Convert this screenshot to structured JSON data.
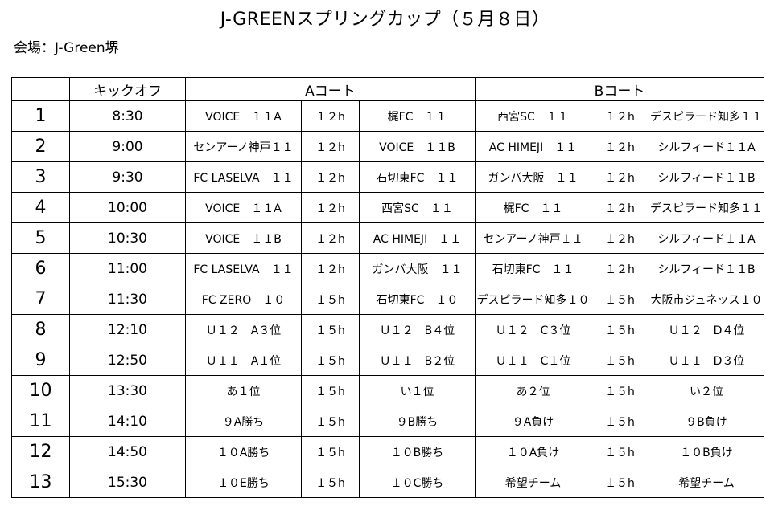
{
  "title": "J-GREENスプリングカップ（５月８日）",
  "venue": "会場：J-Green堺",
  "header": {
    "no": "",
    "kickoff": "キックオフ",
    "court_a": "Aコート",
    "court_b": "Bコート"
  },
  "rows": [
    {
      "no": "1",
      "time": "8:30",
      "a_team1": "VOICE　１１A",
      "a_ref": "１２h",
      "a_team2": "梶FC　１１",
      "b_team1": "西宮SC　１１",
      "b_ref": "１２h",
      "b_team2": "デスピラード知多１１"
    },
    {
      "no": "2",
      "time": "9:00",
      "a_team1": "センアーノ神戸１１",
      "a_ref": "１２h",
      "a_team2": "VOICE　１１B",
      "b_team1": "AC HIMEJI　１１",
      "b_ref": "１２h",
      "b_team2": "シルフィード１１A"
    },
    {
      "no": "3",
      "time": "9:30",
      "a_team1": "FC LASELVA　１１",
      "a_ref": "１２h",
      "a_team2": "石切東FC　１１",
      "b_team1": "ガンバ大阪　１１",
      "b_ref": "１２h",
      "b_team2": "シルフィード１１B"
    },
    {
      "no": "4",
      "time": "10:00",
      "a_team1": "VOICE　１１A",
      "a_ref": "１２h",
      "a_team2": "西宮SC　１１",
      "b_team1": "梶FC　１１",
      "b_ref": "１２h",
      "b_team2": "デスピラード知多１１"
    },
    {
      "no": "5",
      "time": "10:30",
      "a_team1": "VOICE　１１B",
      "a_ref": "１２h",
      "a_team2": "AC HIMEJI　１１",
      "b_team1": "センアーノ神戸１１",
      "b_ref": "１２h",
      "b_team2": "シルフィード１１A"
    },
    {
      "no": "6",
      "time": "11:00",
      "a_team1": "FC LASELVA　１１",
      "a_ref": "１２h",
      "a_team2": "ガンバ大阪　１１",
      "b_team1": "石切東FC　１１",
      "b_ref": "１２h",
      "b_team2": "シルフィード１１B"
    },
    {
      "no": "7",
      "time": "11:30",
      "a_team1": "FC ZERO　１０",
      "a_ref": "１５h",
      "a_team2": "石切東FC　１０",
      "b_team1": "デスピラード知多１０",
      "b_ref": "１５h",
      "b_team2": "大阪市ジュネッス１０"
    },
    {
      "no": "8",
      "time": "12:10",
      "a_team1": "Ｕ１２　A３位",
      "a_ref": "１５h",
      "a_team2": "Ｕ１２　B４位",
      "b_team1": "Ｕ１２　C３位",
      "b_ref": "１５h",
      "b_team2": "Ｕ１２　D４位"
    },
    {
      "no": "9",
      "time": "12:50",
      "a_team1": "Ｕ１１　A１位",
      "a_ref": "１５h",
      "a_team2": "Ｕ１１　B２位",
      "b_team1": "Ｕ１１　C１位",
      "b_ref": "１５h",
      "b_team2": "Ｕ１１　D３位"
    },
    {
      "no": "10",
      "time": "13:30",
      "a_team1": "あ１位",
      "a_ref": "１５h",
      "a_team2": "い１位",
      "b_team1": "あ２位",
      "b_ref": "１５h",
      "b_team2": "い２位"
    },
    {
      "no": "11",
      "time": "14:10",
      "a_team1": "９A勝ち",
      "a_ref": "１５h",
      "a_team2": "９B勝ち",
      "b_team1": "９A負け",
      "b_ref": "１５h",
      "b_team2": "９B負け"
    },
    {
      "no": "12",
      "time": "14:50",
      "a_team1": "１０A勝ち",
      "a_ref": "１５h",
      "a_team2": "１０B勝ち",
      "b_team1": "１０A負け",
      "b_ref": "１５h",
      "b_team2": "１０B負け"
    },
    {
      "no": "13",
      "time": "15:30",
      "a_team1": "１０E勝ち",
      "a_ref": "１５h",
      "a_team2": "１０C勝ち",
      "b_team1": "希望チーム",
      "b_ref": "１５h",
      "b_team2": "希望チーム"
    }
  ]
}
